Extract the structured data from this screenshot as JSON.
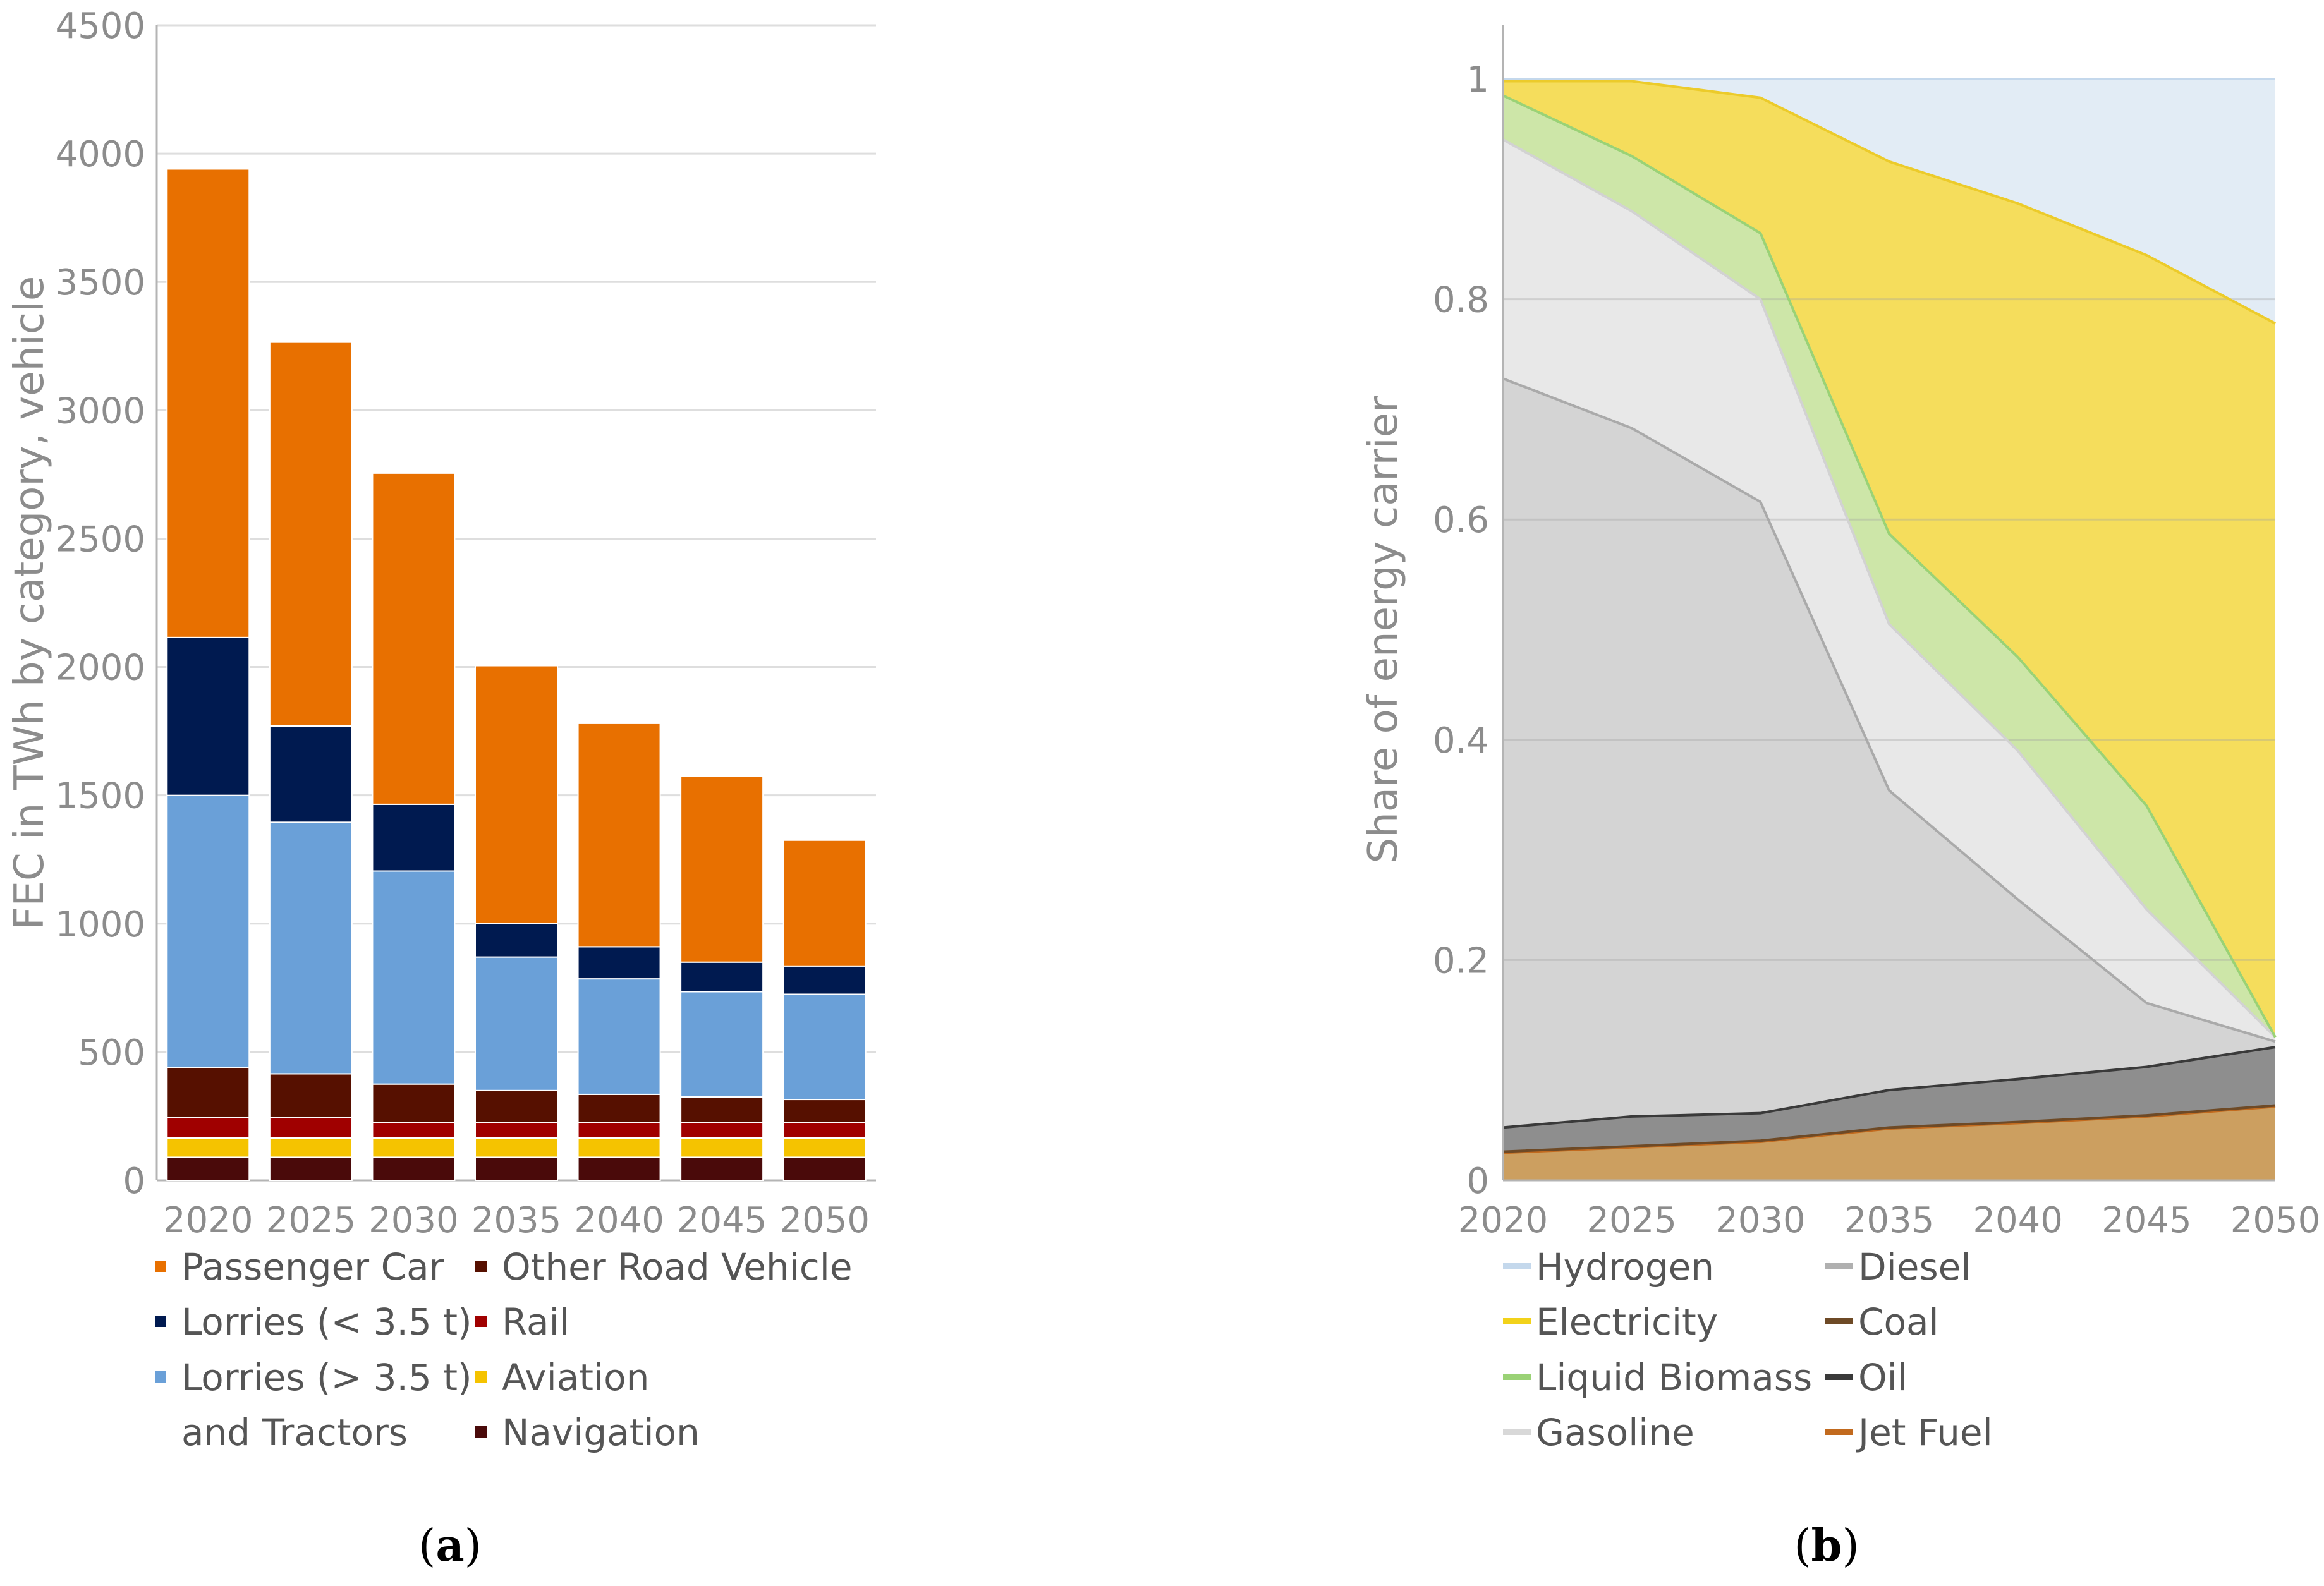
{
  "chart_data": [
    {
      "panel": "a",
      "type": "bar",
      "stacked": true,
      "ylabel": "FEC in TWh by category, vehicle",
      "ylim": [
        0,
        4500
      ],
      "yticks": [
        "0",
        "500",
        "1000",
        "1500",
        "2000",
        "2500",
        "3000",
        "3500",
        "4000",
        "4500"
      ],
      "categories": [
        "2020",
        "2025",
        "2030",
        "2035",
        "2040",
        "2045",
        "2050"
      ],
      "series": [
        {
          "name": "Navigation",
          "color": "#4a0a0a",
          "values": [
            90,
            90,
            90,
            90,
            90,
            90,
            90
          ]
        },
        {
          "name": "Aviation",
          "color": "#f5c300",
          "values": [
            75,
            75,
            75,
            75,
            75,
            75,
            75
          ]
        },
        {
          "name": "Rail",
          "color": "#a00000",
          "values": [
            80,
            80,
            60,
            60,
            60,
            60,
            60
          ]
        },
        {
          "name": "Other Road Vehicle",
          "color": "#561000",
          "values": [
            195,
            170,
            150,
            125,
            110,
            100,
            90
          ]
        },
        {
          "name": "Lorries (> 3.5 t) and Tractors",
          "color": "#6aa0d8",
          "values": [
            1060,
            980,
            830,
            520,
            450,
            410,
            410
          ]
        },
        {
          "name": "Lorries (< 3.5 t)",
          "color": "#001a50",
          "values": [
            615,
            375,
            260,
            130,
            125,
            115,
            110
          ]
        },
        {
          "name": "Passenger Car",
          "color": "#e87000",
          "values": [
            1825,
            1495,
            1290,
            1005,
            870,
            725,
            490
          ]
        }
      ],
      "legend": [
        {
          "label": "Passenger Car",
          "color": "#e87000"
        },
        {
          "label": "Other Road Vehicle",
          "color": "#561000"
        },
        {
          "label": "Lorries (< 3.5 t)",
          "color": "#001a50"
        },
        {
          "label": "Rail",
          "color": "#a00000"
        },
        {
          "label": "Lorries (> 3.5 t)",
          "label_line2": "and Tractors",
          "color": "#6aa0d8"
        },
        {
          "label": "Aviation",
          "color": "#f5c300"
        },
        {
          "label": "Navigation",
          "color": "#4a0a0a"
        }
      ]
    },
    {
      "panel": "b",
      "type": "area",
      "stacked": true,
      "ylabel": "Share of energy carrier",
      "ylim": [
        0,
        1
      ],
      "yticks": [
        "0",
        "0.2",
        "0.4",
        "0.6",
        "0.8",
        "1"
      ],
      "x": [
        "2020",
        "2025",
        "2030",
        "2035",
        "2040",
        "2045",
        "2050"
      ],
      "series": [
        {
          "name": "Jet Fuel",
          "fill": "#cc9f60",
          "line": "#c26a1e",
          "values": [
            0.025,
            0.03,
            0.035,
            0.047,
            0.052,
            0.058,
            0.067
          ]
        },
        {
          "name": "Coal",
          "fill": "#7a5a3a",
          "line": "#6e4a26",
          "values": [
            0.001,
            0.001,
            0.001,
            0.001,
            0.001,
            0.001,
            0.001
          ]
        },
        {
          "name": "Oil",
          "fill": "#8e8e8e",
          "line": "#3a3a3a",
          "values": [
            0.022,
            0.027,
            0.025,
            0.034,
            0.039,
            0.044,
            0.053
          ]
        },
        {
          "name": "Diesel",
          "fill": "#d4d4d4",
          "line": "#aaaaaa",
          "values": [
            0.68,
            0.625,
            0.555,
            0.272,
            0.163,
            0.058,
            0.005
          ]
        },
        {
          "name": "Gasoline",
          "fill": "#e8e8e8",
          "line": "#d2d2d2",
          "values": [
            0.217,
            0.197,
            0.184,
            0.151,
            0.135,
            0.085,
            0.004
          ]
        },
        {
          "name": "Liquid Biomass",
          "fill": "#cde6a8",
          "line": "#9ad276",
          "values": [
            0.04,
            0.05,
            0.06,
            0.082,
            0.085,
            0.094,
            0.0
          ]
        },
        {
          "name": "Electricity",
          "fill": "#f5dd5c",
          "line": "#eccb2a",
          "values": [
            0.013,
            0.068,
            0.123,
            0.338,
            0.412,
            0.5,
            0.648
          ]
        },
        {
          "name": "Hydrogen",
          "fill": "#e2ecf5",
          "line": "#c4d8ec",
          "values": [
            0.002,
            0.002,
            0.017,
            0.075,
            0.113,
            0.16,
            0.222
          ]
        }
      ],
      "legend": [
        {
          "label": "Hydrogen",
          "color": "#c4d8ec"
        },
        {
          "label": "Diesel",
          "color": "#b0b0b0"
        },
        {
          "label": "Electricity",
          "color": "#f2d21a"
        },
        {
          "label": "Coal",
          "color": "#6e4a26"
        },
        {
          "label": "Liquid Biomass",
          "color": "#9ad276"
        },
        {
          "label": "Oil",
          "color": "#3a3a3a"
        },
        {
          "label": "Gasoline",
          "color": "#d8d8d8"
        },
        {
          "label": "Jet Fuel",
          "color": "#c26a1e"
        }
      ]
    }
  ],
  "panel_labels": [
    {
      "open": "(",
      "letter": "a",
      "close": ")"
    },
    {
      "open": "(",
      "letter": "b",
      "close": ")"
    }
  ]
}
